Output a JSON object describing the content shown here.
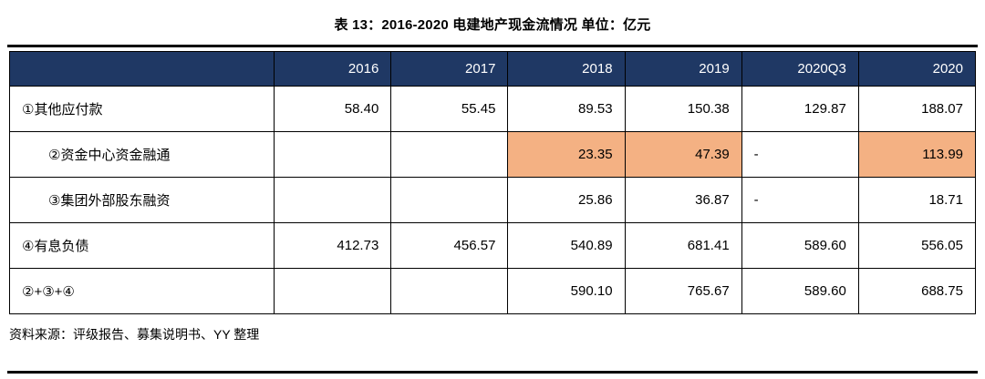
{
  "page": {
    "title": "表 13：2016-2020 电建地产现金流情况 单位：亿元",
    "source": "资料来源：评级报告、募集说明书、YY 整理"
  },
  "chart_data": {
    "type": "table",
    "title": "表 13：2016-2020 电建地产现金流情况",
    "unit": "亿元",
    "columns": [
      "",
      "2016",
      "2017",
      "2018",
      "2019",
      "2020Q3",
      "2020"
    ],
    "rows": [
      {
        "label": "①其他应付款",
        "values": [
          "58.40",
          "55.45",
          "89.53",
          "150.38",
          "129.87",
          "188.07"
        ]
      },
      {
        "label": "②资金中心资金融通",
        "values": [
          "",
          "",
          "23.35",
          "47.39",
          "-",
          "113.99"
        ],
        "highlight_cols": [
          2,
          3,
          5
        ]
      },
      {
        "label": "③集团外部股东融资",
        "values": [
          "",
          "",
          "25.86",
          "36.87",
          "-",
          "18.71"
        ]
      },
      {
        "label": "④有息负债",
        "values": [
          "412.73",
          "456.57",
          "540.89",
          "681.41",
          "589.60",
          "556.05"
        ]
      },
      {
        "label": "②+③+④",
        "values": [
          "",
          "",
          "590.10",
          "765.67",
          "589.60",
          "688.75"
        ]
      }
    ],
    "colors": {
      "header_bg": "#1F3864",
      "header_text": "#FFFFFF",
      "highlight_bg": "#F4B183"
    }
  }
}
